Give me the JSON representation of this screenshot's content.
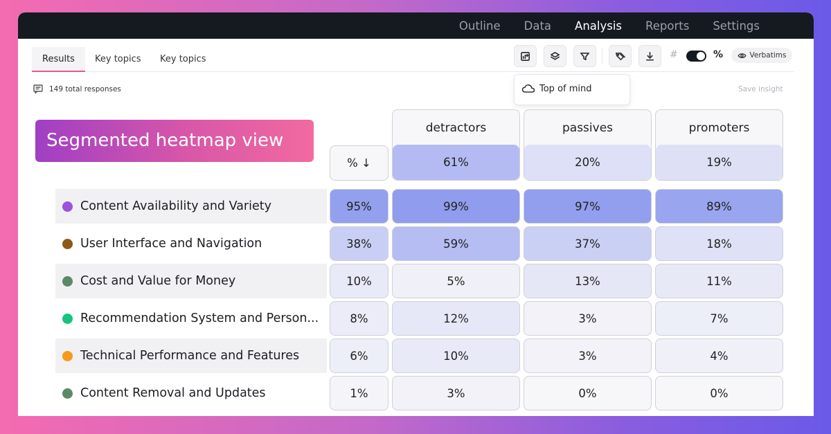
{
  "nav": {
    "items": [
      {
        "label": "Outline",
        "active": false
      },
      {
        "label": "Data",
        "active": false
      },
      {
        "label": "Analysis",
        "active": true
      },
      {
        "label": "Reports",
        "active": false
      },
      {
        "label": "Settings",
        "active": false
      }
    ]
  },
  "tabs": [
    {
      "label": "Results",
      "active": true
    },
    {
      "label": "Key topics",
      "active": false
    },
    {
      "label": "Key topics",
      "active": false
    }
  ],
  "toolbar": {
    "icons": [
      "chart-add-icon",
      "layers-icon",
      "filter-icon",
      "tags-icon",
      "download-icon"
    ],
    "hash_label": "#",
    "percent_label": "%",
    "percent_toggle_on": true,
    "verbatims_label": "Verbatims"
  },
  "dropdown": {
    "item_label": "Top of mind",
    "icon": "cloud-icon"
  },
  "summary": {
    "responses": "149 total responses",
    "save_insight": "Save insight"
  },
  "banner": {
    "text": "Segmented heatmap view"
  },
  "heatmap": {
    "sort_label": "% ↓",
    "columns": [
      {
        "name": "detractors",
        "total": "61%",
        "total_value": 61
      },
      {
        "name": "passives",
        "total": "20%",
        "total_value": 20
      },
      {
        "name": "promoters",
        "total": "19%",
        "total_value": 19
      }
    ],
    "rows": [
      {
        "label": "Content Availability and Variety",
        "dot_color": "#9b51e0",
        "shaded": true,
        "overall": "95%",
        "overall_value": 95,
        "values": [
          "99%",
          "97%",
          "89%"
        ],
        "numbers": [
          99,
          97,
          89
        ]
      },
      {
        "label": "User Interface and Navigation",
        "dot_color": "#8b5a14",
        "shaded": false,
        "overall": "38%",
        "overall_value": 38,
        "values": [
          "59%",
          "37%",
          "18%"
        ],
        "numbers": [
          59,
          37,
          18
        ]
      },
      {
        "label": "Cost and Value for Money",
        "dot_color": "#5a8a68",
        "shaded": true,
        "overall": "10%",
        "overall_value": 10,
        "values": [
          "5%",
          "13%",
          "11%"
        ],
        "numbers": [
          5,
          13,
          11
        ]
      },
      {
        "label": "Recommendation System and Person...",
        "dot_color": "#16c47f",
        "shaded": false,
        "overall": "8%",
        "overall_value": 8,
        "values": [
          "12%",
          "3%",
          "7%"
        ],
        "numbers": [
          12,
          3,
          7
        ]
      },
      {
        "label": "Technical Performance and Features",
        "dot_color": "#f59a1c",
        "shaded": true,
        "overall": "6%",
        "overall_value": 6,
        "values": [
          "10%",
          "3%",
          "4%"
        ],
        "numbers": [
          10,
          3,
          4
        ]
      },
      {
        "label": "Content Removal and Updates",
        "dot_color": "#5a8a68",
        "shaded": false,
        "overall": "1%",
        "overall_value": 1,
        "values": [
          "3%",
          "0%",
          "0%"
        ],
        "numbers": [
          3,
          0,
          0
        ]
      }
    ]
  }
}
